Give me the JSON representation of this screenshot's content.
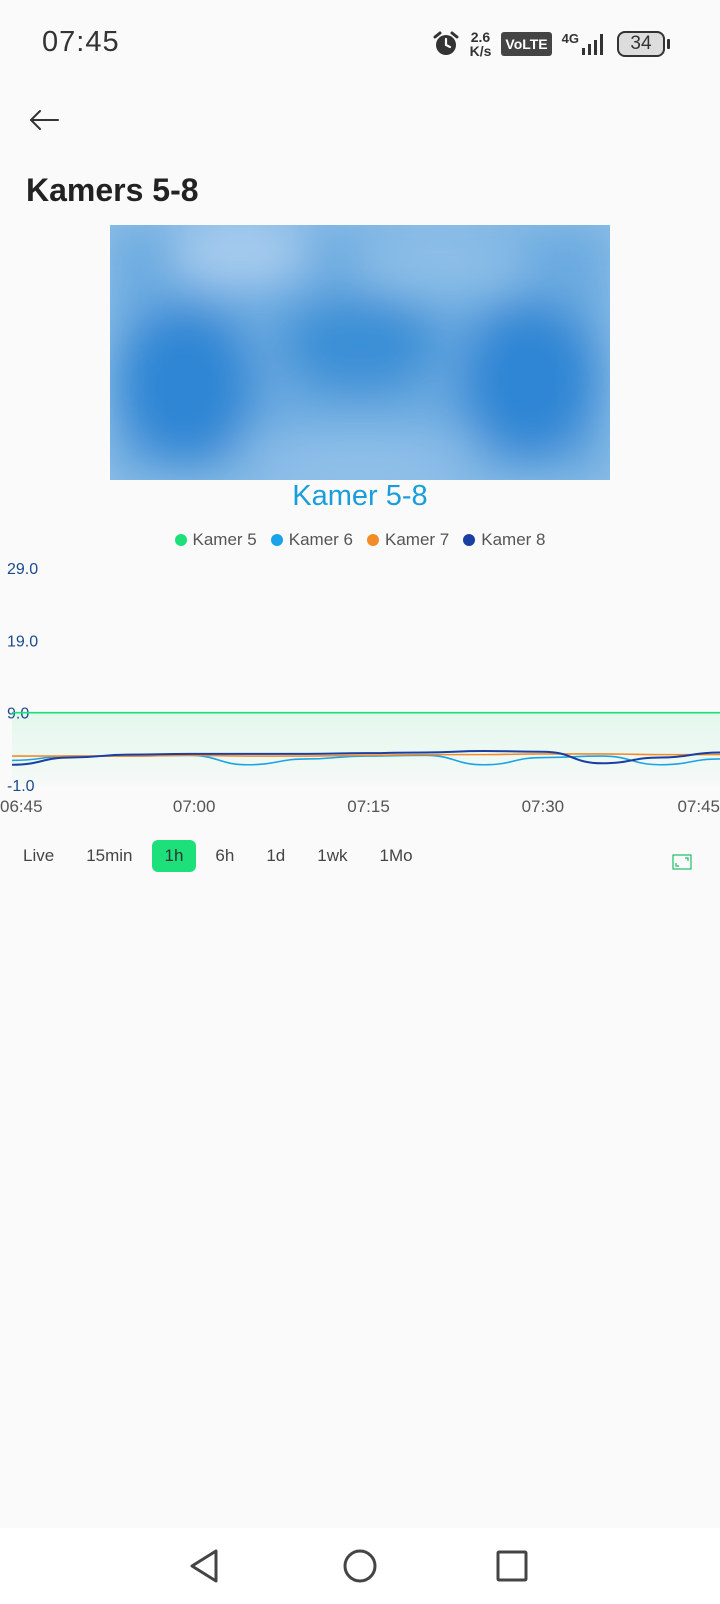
{
  "status_bar": {
    "time": "07:45",
    "net_speed_value": "2.6",
    "net_speed_unit": "K/s",
    "volte": "VoLTE",
    "network": "4G",
    "battery": "34"
  },
  "page": {
    "title": "Kamers 5-8"
  },
  "chart": {
    "title": "Kamer 5-8",
    "legend": [
      {
        "name": "Kamer 5",
        "color": "#1de07a"
      },
      {
        "name": "Kamer 6",
        "color": "#1aa3e8"
      },
      {
        "name": "Kamer 7",
        "color": "#f28c28"
      },
      {
        "name": "Kamer 8",
        "color": "#1a3fa3"
      }
    ],
    "y_ticks": [
      "29.0",
      "19.0",
      "9.0",
      "-1.0"
    ],
    "x_ticks": [
      "06:45",
      "07:00",
      "07:15",
      "07:30",
      "07:45"
    ]
  },
  "range_buttons": [
    "Live",
    "15min",
    "1h",
    "6h",
    "1d",
    "1wk",
    "1Mo"
  ],
  "active_range": "1h",
  "chart_data": {
    "type": "line",
    "title": "Kamer 5-8",
    "x": [
      "06:45",
      "06:50",
      "06:55",
      "07:00",
      "07:05",
      "07:10",
      "07:15",
      "07:20",
      "07:25",
      "07:30",
      "07:35",
      "07:40",
      "07:45"
    ],
    "ylim": [
      -1.0,
      29.0
    ],
    "y_ticks": [
      29.0,
      19.0,
      9.0,
      -1.0
    ],
    "series": [
      {
        "name": "Kamer 5",
        "color": "#1de07a",
        "values": [
          9.0,
          9.0,
          9.0,
          9.0,
          9.0,
          9.0,
          9.0,
          9.0,
          9.0,
          9.0,
          9.0,
          9.0,
          9.0
        ]
      },
      {
        "name": "Kamer 6",
        "color": "#1aa3e8",
        "values": [
          2.4,
          3.0,
          3.0,
          3.1,
          1.8,
          2.6,
          3.0,
          3.1,
          1.8,
          2.8,
          3.0,
          1.8,
          2.6
        ]
      },
      {
        "name": "Kamer 7",
        "color": "#f28c28",
        "values": [
          3.0,
          3.0,
          3.0,
          3.1,
          3.0,
          3.0,
          3.1,
          3.2,
          3.2,
          3.3,
          3.3,
          3.2,
          3.2
        ]
      },
      {
        "name": "Kamer 8",
        "color": "#1a3fa3",
        "values": [
          1.8,
          2.8,
          3.2,
          3.3,
          3.3,
          3.3,
          3.4,
          3.5,
          3.7,
          3.6,
          2.0,
          2.8,
          3.5
        ]
      }
    ]
  }
}
